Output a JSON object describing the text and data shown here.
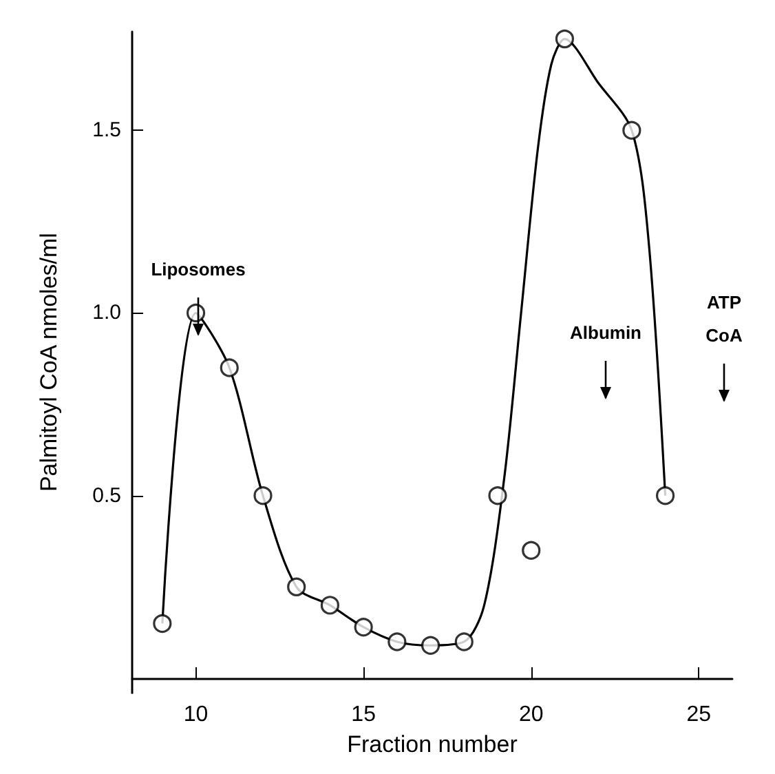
{
  "chart_data": {
    "type": "scatter",
    "xlabel": "Fraction number",
    "ylabel": "Palmitoyl CoA nmoles/ml",
    "xlim": [
      8.1,
      26
    ],
    "xticks": [
      10,
      15,
      20,
      25
    ],
    "ylim": [
      -0.04,
      1.77
    ],
    "yticks": [
      0.5,
      {
        "value": 1,
        "label": "1.0"
      },
      1.5
    ],
    "grid": false,
    "line_style": "solid",
    "series": [
      {
        "type": "line",
        "marker": "none",
        "color": "#000000",
        "x": [
          9,
          10,
          11,
          12,
          13,
          14,
          15,
          16,
          17,
          18,
          18.6,
          19.2,
          19.7,
          20.2,
          20.6,
          21,
          22,
          23,
          23.5,
          24
        ],
        "values": [
          0.15,
          1.0,
          0.85,
          0.5,
          0.25,
          0.2,
          0.14,
          0.1,
          0.09,
          0.1,
          0.2,
          0.55,
          1.0,
          1.45,
          1.68,
          1.75,
          1.63,
          1.5,
          1.2,
          0.5
        ]
      },
      {
        "marker": "circle",
        "color": "#000000",
        "x": [
          9,
          10,
          11,
          12,
          13,
          14,
          15,
          16,
          17,
          18,
          19,
          20,
          21,
          23,
          24
        ],
        "values": [
          0.15,
          1.0,
          0.85,
          0.5,
          0.25,
          0.2,
          0.14,
          0.1,
          0.09,
          0.1,
          0.5,
          0.35,
          1.75,
          1.5,
          0.5
        ]
      }
    ],
    "annotations": [
      "Liposomes",
      "Albumin",
      "ATP\nCoA"
    ]
  }
}
